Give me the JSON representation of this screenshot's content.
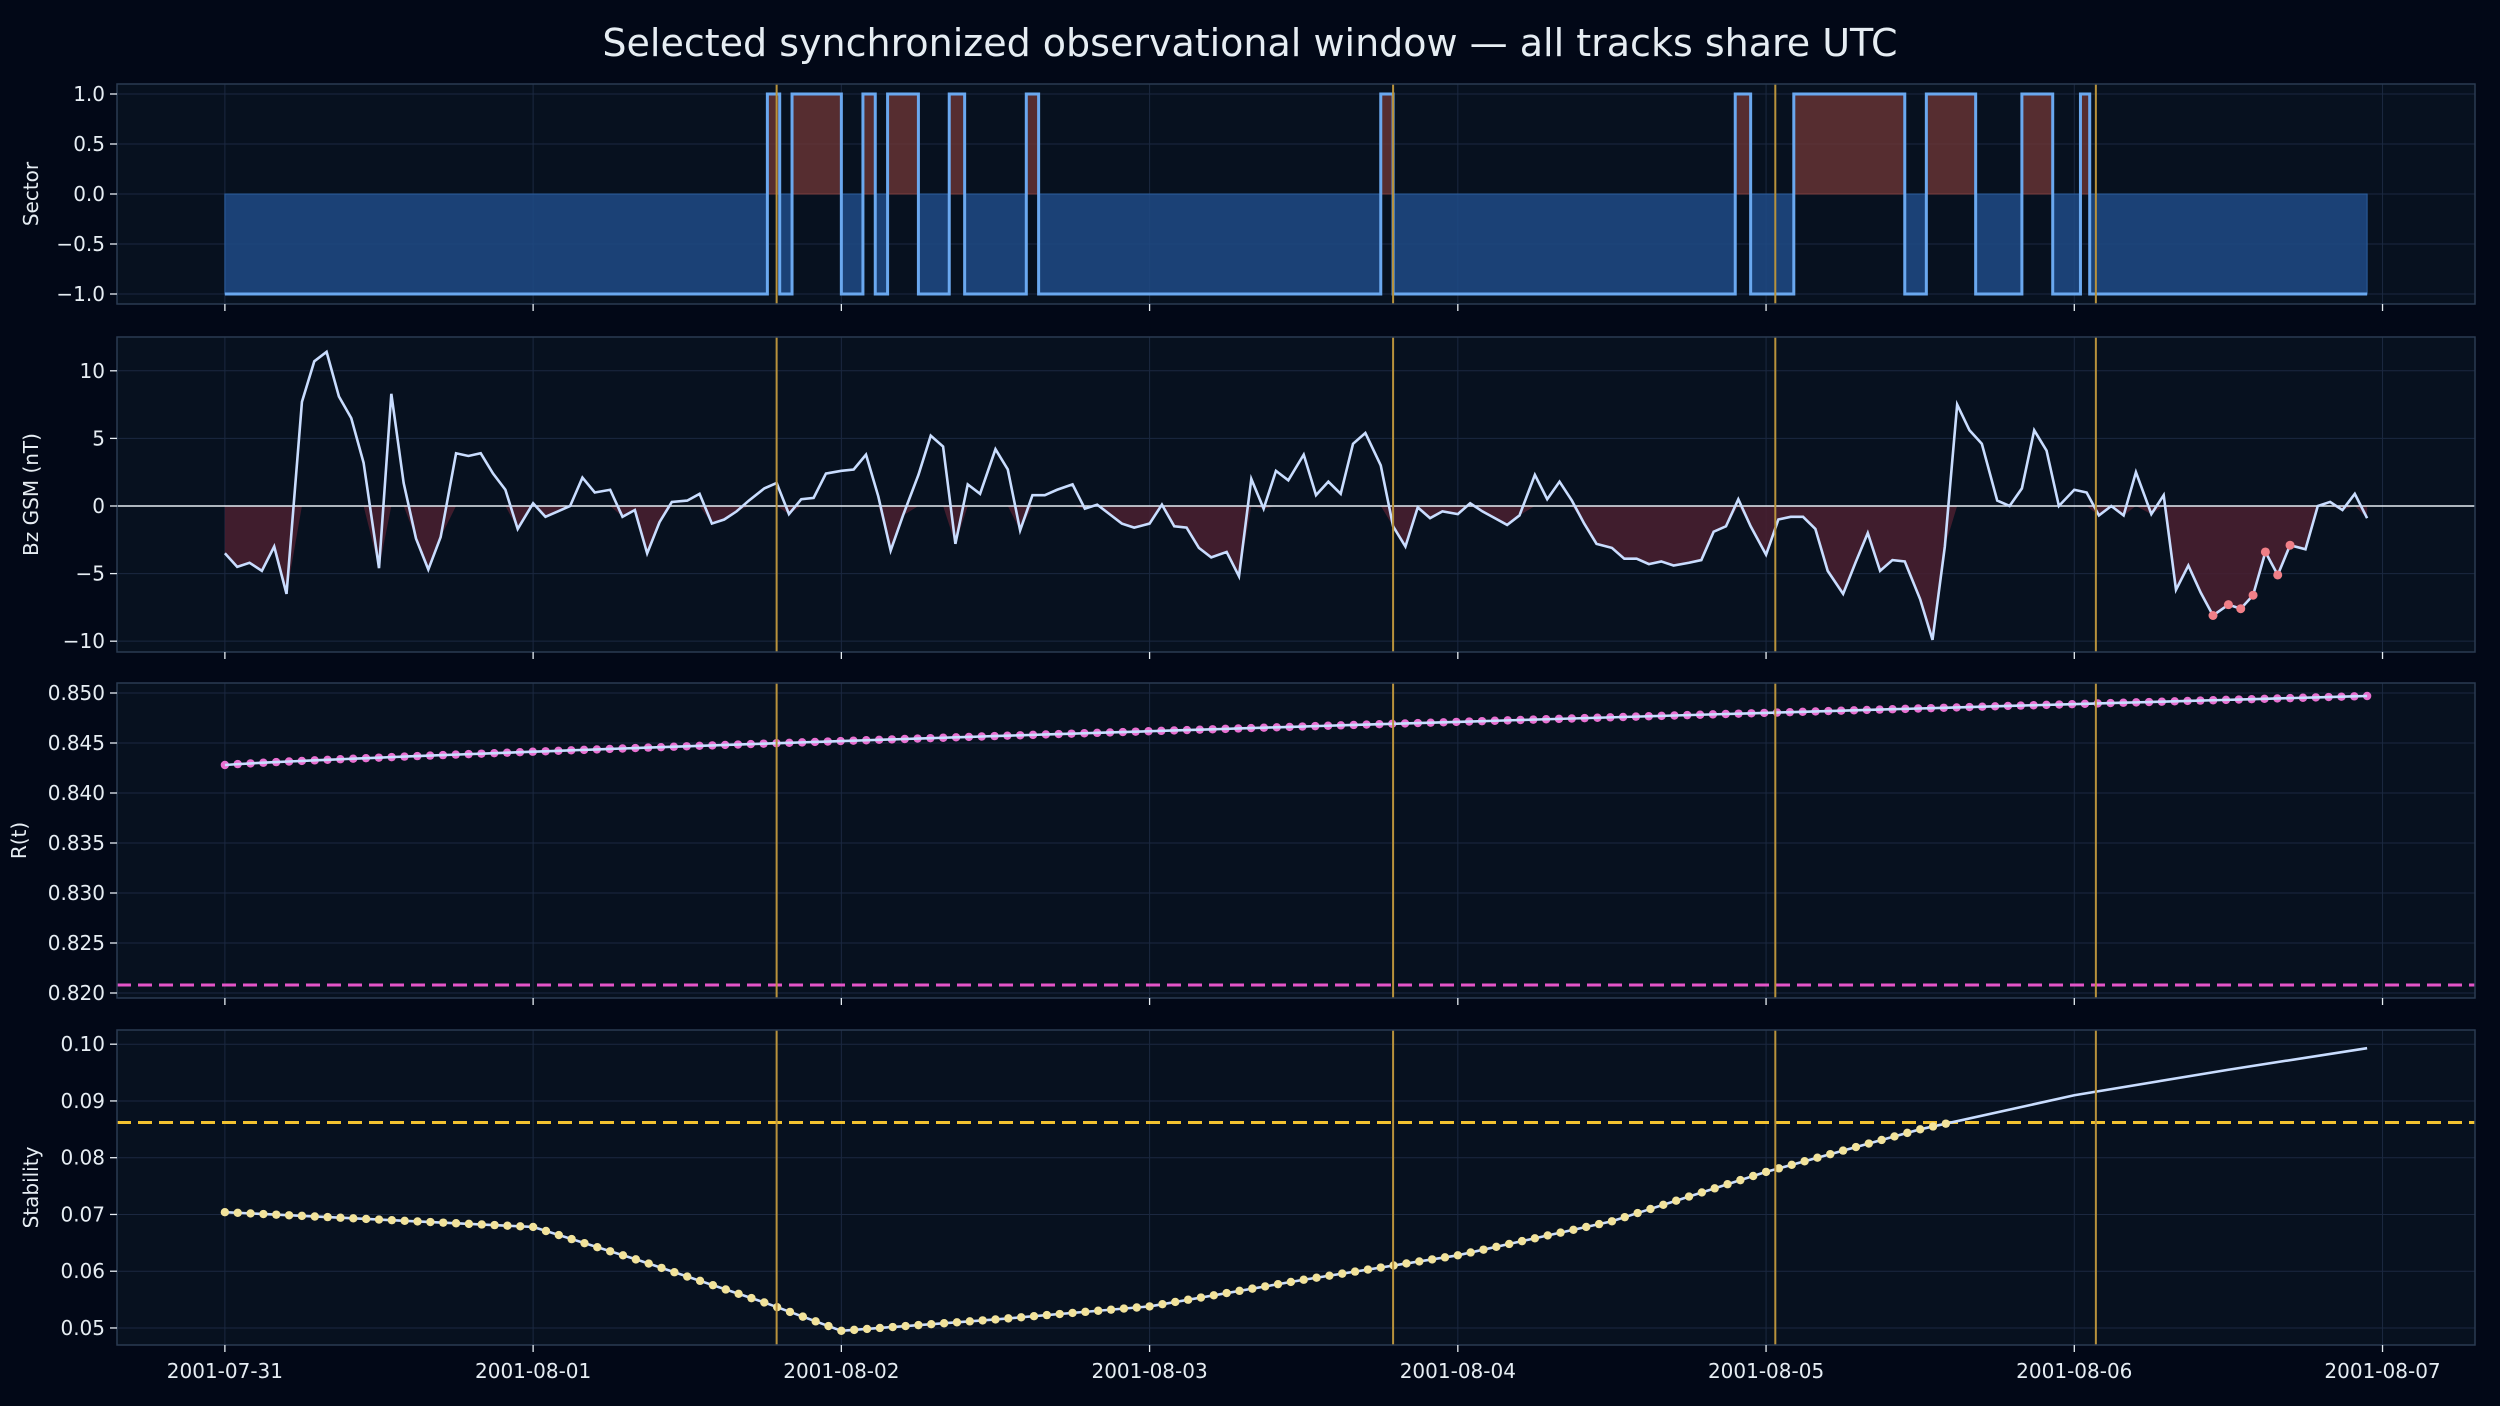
{
  "title": "Selected synchronized observational window — all tracks share UTC",
  "colors": {
    "figure_bg": "#020817",
    "panel_bg": "#07111f",
    "frame": "#2a3a52",
    "grid": "#1b2840",
    "text": "#e6edf3",
    "line": "#c9ddff",
    "sector_step": "#6aa8ef",
    "sector_neg_fill": "#1e4a86",
    "sector_pos_fill": "#6a3434",
    "bz_neg_fill": "#4a2030",
    "bz_marker": "#f07f87",
    "r_marker": "#e870d0",
    "r_threshold": "#e455c8",
    "stab_marker": "#f2e39b",
    "stab_threshold": "#f2c230",
    "event_line": "#b8923c"
  },
  "x_tick_labels": [
    "2001-07-31",
    "2001-08-01",
    "2001-08-02",
    "2001-08-03",
    "2001-08-04",
    "2001-08-05",
    "2001-08-06",
    "2001-08-07"
  ],
  "chart_data": [
    {
      "type": "line",
      "ylabel": "Sector",
      "yticks": [
        1.0,
        0.5,
        0.0,
        -0.5,
        -1.0
      ],
      "ytick_labels": [
        "1.0",
        "0.5",
        "0.0",
        "−0.5",
        "−1.0"
      ],
      "ylim": [
        -1.1,
        1.1
      ],
      "xlim": [
        -0.35,
        7.3
      ],
      "step_changes": [
        [
          0.0,
          -1
        ],
        [
          1.76,
          1
        ],
        [
          1.8,
          -1
        ],
        [
          1.84,
          1
        ],
        [
          2.0,
          -1
        ],
        [
          2.07,
          1
        ],
        [
          2.11,
          -1
        ],
        [
          2.15,
          1
        ],
        [
          2.25,
          -1
        ],
        [
          2.35,
          1
        ],
        [
          2.4,
          -1
        ],
        [
          2.6,
          1
        ],
        [
          2.64,
          -1
        ],
        [
          3.75,
          1
        ],
        [
          3.79,
          -1
        ],
        [
          4.9,
          1
        ],
        [
          4.95,
          -1
        ],
        [
          5.09,
          1
        ],
        [
          5.45,
          -1
        ],
        [
          5.52,
          1
        ],
        [
          5.68,
          -1
        ],
        [
          5.83,
          1
        ],
        [
          5.93,
          -1
        ],
        [
          6.02,
          1
        ],
        [
          6.05,
          -1
        ]
      ],
      "step_end": 6.95,
      "event_lines": [
        1.79,
        3.79,
        5.03,
        6.07
      ]
    },
    {
      "type": "line",
      "ylabel": "Bz GSM (nT)",
      "yticks": [
        10,
        5,
        0,
        -5,
        -10
      ],
      "ytick_labels": [
        "10",
        "5",
        "0",
        "−5",
        "−10"
      ],
      "ylim": [
        -10.8,
        12.5
      ],
      "xlim": [
        -0.35,
        7.3
      ],
      "x": [
        0.0,
        0.04,
        0.08,
        0.12,
        0.16,
        0.2,
        0.25,
        0.29,
        0.33,
        0.37,
        0.41,
        0.45,
        0.5,
        0.54,
        0.58,
        0.62,
        0.66,
        0.7,
        0.75,
        0.79,
        0.83,
        0.87,
        0.91,
        0.95,
        1.0,
        1.04,
        1.08,
        1.12,
        1.16,
        1.2,
        1.25,
        1.29,
        1.33,
        1.37,
        1.41,
        1.45,
        1.5,
        1.54,
        1.58,
        1.62,
        1.66,
        1.7,
        1.75,
        1.79,
        1.83,
        1.87,
        1.91,
        1.95,
        2.0,
        2.04,
        2.08,
        2.12,
        2.16,
        2.2,
        2.25,
        2.29,
        2.33,
        2.37,
        2.41,
        2.45,
        2.5,
        2.54,
        2.58,
        2.62,
        2.66,
        2.7,
        2.75,
        2.79,
        2.83,
        2.87,
        2.91,
        2.95,
        3.0,
        3.04,
        3.08,
        3.12,
        3.16,
        3.2,
        3.25,
        3.29,
        3.33,
        3.37,
        3.41,
        3.45,
        3.5,
        3.54,
        3.58,
        3.62,
        3.66,
        3.7,
        3.75,
        3.79,
        3.83,
        3.87,
        3.91,
        3.95,
        4.0,
        4.04,
        4.08,
        4.12,
        4.16,
        4.2,
        4.25,
        4.29,
        4.33,
        4.37,
        4.41,
        4.45,
        4.5,
        4.54,
        4.58,
        4.62,
        4.66,
        4.7,
        4.75,
        4.79,
        4.83,
        4.87,
        4.91,
        4.95,
        5.0,
        5.04,
        5.08,
        5.12,
        5.16,
        5.2,
        5.25,
        5.29,
        5.33,
        5.37,
        5.41,
        5.45,
        5.5,
        5.54,
        5.58,
        5.62,
        5.66,
        5.7,
        5.75,
        5.79,
        5.83,
        5.87,
        5.91,
        5.95,
        6.0,
        6.04,
        6.08,
        6.12,
        6.16,
        6.2,
        6.25,
        6.29,
        6.33,
        6.37,
        6.41,
        6.45,
        6.5,
        6.54,
        6.58,
        6.62,
        6.66,
        6.7,
        6.75,
        6.79,
        6.83,
        6.87,
        6.91,
        6.95
      ],
      "y": [
        -3.5,
        -4.5,
        -4.2,
        -4.8,
        -3.0,
        -6.5,
        7.7,
        10.7,
        11.4,
        8.1,
        6.5,
        3.2,
        -4.6,
        8.3,
        1.7,
        -2.4,
        -4.7,
        -2.3,
        3.9,
        3.7,
        3.9,
        2.4,
        1.2,
        -1.7,
        0.2,
        -0.8,
        -0.4,
        0.0,
        2.1,
        1.0,
        1.2,
        -0.8,
        -0.3,
        -3.5,
        -1.2,
        0.3,
        0.4,
        0.9,
        -1.3,
        -1.0,
        -0.4,
        0.4,
        1.3,
        1.7,
        -0.6,
        0.5,
        0.6,
        2.4,
        2.6,
        2.7,
        3.8,
        0.7,
        -3.3,
        -0.7,
        2.3,
        5.2,
        4.4,
        -2.8,
        1.6,
        0.9,
        4.2,
        2.7,
        -1.8,
        0.8,
        0.8,
        1.2,
        1.6,
        -0.2,
        0.1,
        -0.6,
        -1.3,
        -1.6,
        -1.3,
        0.1,
        -1.5,
        -1.6,
        -3.1,
        -3.8,
        -3.4,
        -5.2,
        2.0,
        -0.2,
        2.6,
        1.9,
        3.8,
        0.8,
        1.8,
        0.9,
        4.6,
        5.4,
        3.0,
        -1.5,
        -3.0,
        -0.1,
        -0.9,
        -0.4,
        -0.6,
        0.2,
        -0.4,
        -0.9,
        -1.4,
        -0.7,
        2.3,
        0.5,
        1.8,
        0.4,
        -1.3,
        -2.8,
        -3.1,
        -3.9,
        -3.9,
        -4.3,
        -4.1,
        -4.4,
        -4.2,
        -4.0,
        -1.9,
        -1.5,
        0.5,
        -1.5,
        -3.6,
        -1.0,
        -0.8,
        -0.8,
        -1.7,
        -4.8,
        -6.5,
        -4.2,
        -2.0,
        -4.8,
        -4.0,
        -4.1,
        -6.9,
        -9.9,
        -3.0,
        7.5,
        5.6,
        4.6,
        0.4,
        0.0,
        1.3,
        5.6,
        4.1,
        0.0,
        1.2,
        1.0,
        -0.7,
        0.0,
        -0.7,
        2.5,
        -0.6,
        0.8,
        -6.2,
        -4.4,
        -6.4,
        -8.1,
        -7.3,
        -7.6,
        -6.6,
        -3.4,
        -5.1,
        -2.9,
        -3.2,
        0.0,
        0.3,
        -0.3,
        0.9,
        -0.9
      ],
      "highlighted_points": [
        [
          6.45,
          -8.1
        ],
        [
          6.5,
          -7.3
        ],
        [
          6.54,
          -7.6
        ],
        [
          6.58,
          -6.6
        ],
        [
          6.62,
          -3.4
        ],
        [
          6.66,
          -5.1
        ],
        [
          6.7,
          -2.9
        ]
      ],
      "zero_line": 0,
      "event_lines": [
        1.79,
        3.79,
        5.03,
        6.07
      ]
    },
    {
      "type": "line",
      "ylabel": "R(t)",
      "yticks": [
        0.85,
        0.845,
        0.84,
        0.835,
        0.83,
        0.825,
        0.82
      ],
      "ytick_labels": [
        "0.850",
        "0.845",
        "0.840",
        "0.835",
        "0.830",
        "0.825",
        "0.820"
      ],
      "ylim": [
        0.8195,
        0.851
      ],
      "xlim": [
        -0.35,
        7.3
      ],
      "x_start": 0.0,
      "x_end": 6.95,
      "y_start": 0.8428,
      "y_end": 0.8497,
      "n_points": 168,
      "threshold": 0.8208,
      "event_lines": [
        1.79,
        3.79,
        5.03,
        6.07
      ]
    },
    {
      "type": "line",
      "ylabel": "Stability",
      "yticks": [
        0.1,
        0.09,
        0.08,
        0.07,
        0.06,
        0.05
      ],
      "ytick_labels": [
        "0.10",
        "0.09",
        "0.08",
        "0.07",
        "0.06",
        "0.05"
      ],
      "ylim": [
        0.047,
        0.1025
      ],
      "xlim": [
        -0.35,
        7.3
      ],
      "x": [
        0.0,
        1.0,
        1.35,
        1.75,
        2.0,
        2.5,
        3.0,
        3.5,
        4.0,
        4.5,
        5.0,
        5.5,
        6.0,
        6.5,
        6.95
      ],
      "y": [
        0.0704,
        0.0678,
        0.0618,
        0.0545,
        0.0495,
        0.0515,
        0.0538,
        0.0585,
        0.0628,
        0.0688,
        0.0775,
        0.085,
        0.091,
        0.0955,
        0.0993
      ],
      "marker_until_x": 5.6,
      "threshold": 0.0862,
      "event_lines": [
        1.79,
        3.79,
        5.03,
        6.07
      ]
    }
  ]
}
